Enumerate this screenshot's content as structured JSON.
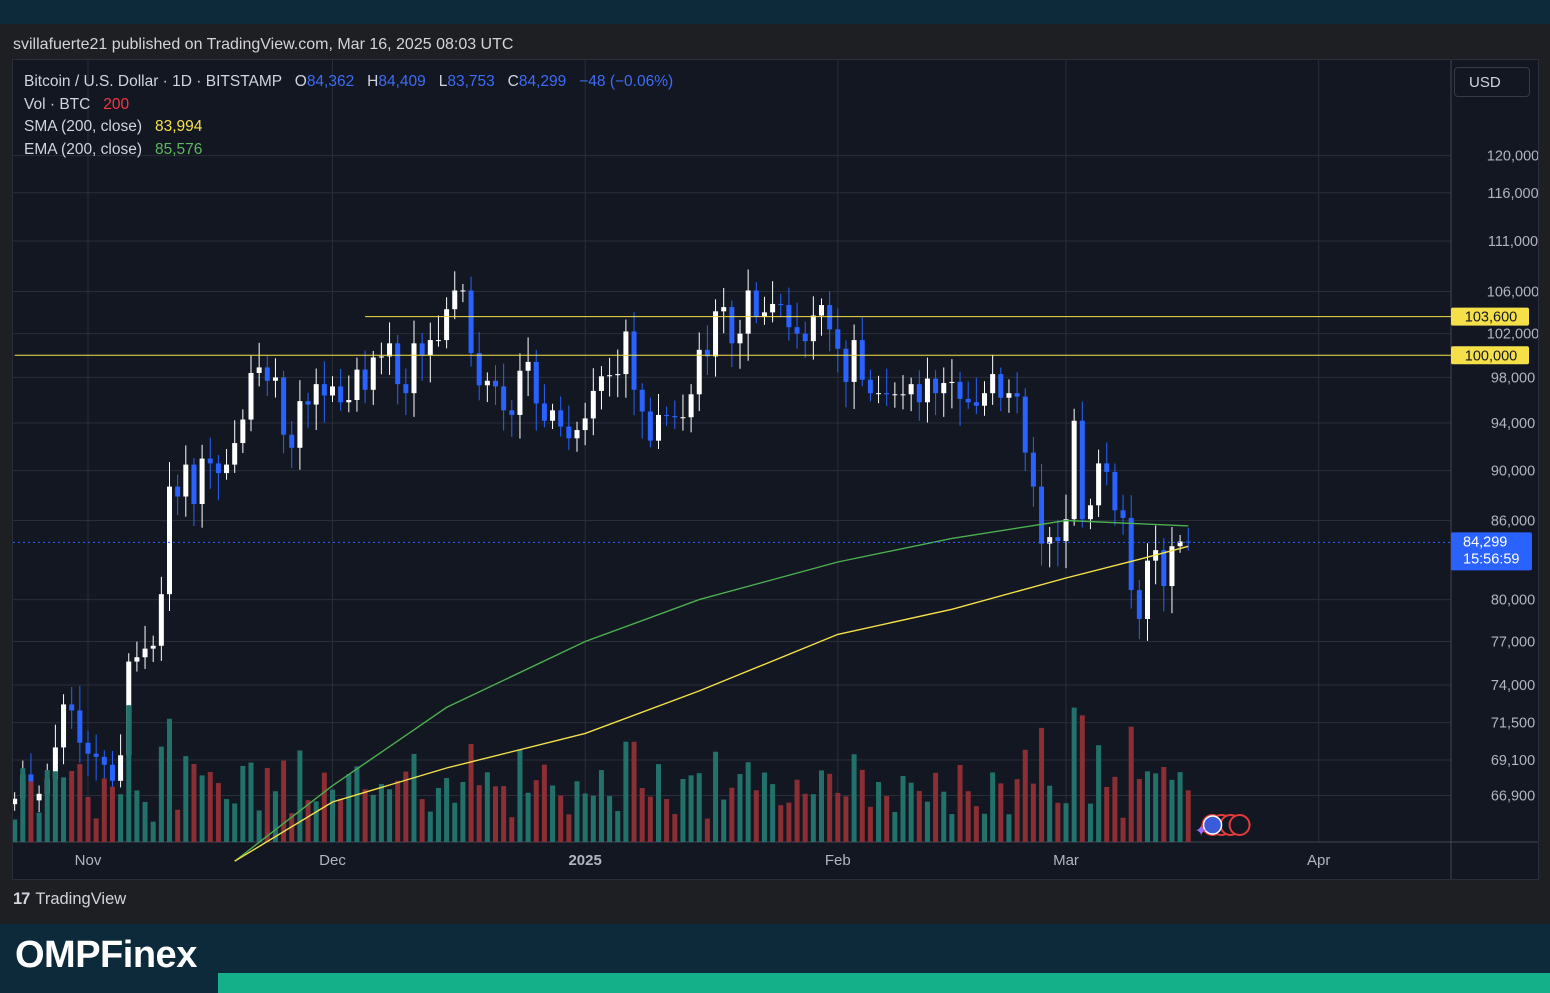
{
  "publisher_line": "svillafuerte21 published on TradingView.com, Mar 16, 2025 08:03 UTC",
  "legend": {
    "symbol": "Bitcoin / U.S. Dollar · 1D · BITSTAMP",
    "o_label": "O",
    "o_value": "84,362",
    "h_label": "H",
    "h_value": "84,409",
    "l_label": "L",
    "l_value": "83,753",
    "c_label": "C",
    "c_value": "84,299",
    "change": "−48 (−0.06%)",
    "vol_label": "Vol · BTC",
    "vol_value": "200",
    "sma_label": "SMA (200, close)",
    "sma_value": "83,994",
    "ema_label": "EMA (200, close)",
    "ema_value": "85,576"
  },
  "currency_button": "USD",
  "price_tag": {
    "value": "84,299",
    "countdown": "15:56:59",
    "color": "#2962ff"
  },
  "footer": {
    "tv_logo": "17",
    "tv_label": "TradingView",
    "brand_pre": "OMPF",
    "brand_post": "nex",
    "brand_i": "i"
  },
  "colors": {
    "up": "#ffffff",
    "down": "#2962ff",
    "sma": "#f5e04a",
    "ema": "#4caf50",
    "level": "#f5e04a",
    "vol_up": "#22726b",
    "vol_down": "#8b2f35",
    "accent": "#13b089"
  },
  "chart_data": {
    "type": "candlestick",
    "y_axis_ticks": [
      120000,
      116000,
      111000,
      106000,
      102000,
      98000,
      94000,
      90000,
      86000,
      80000,
      77000,
      74000,
      71500,
      69100,
      66900
    ],
    "y_axis_tick_labels": [
      "120,000",
      "116,000",
      "111,000",
      "106,000",
      "102,000",
      "98,000",
      "94,000",
      "90,000",
      "86,000",
      "80,000",
      "77,000",
      "74,000",
      "71,500",
      "69,100",
      "66,900"
    ],
    "scale": "log",
    "ylim": [
      65000,
      128000
    ],
    "x_axis_labels": [
      {
        "label": "Nov",
        "date": "2024-11-01",
        "bold": false
      },
      {
        "label": "Dec",
        "date": "2024-12-01",
        "bold": false
      },
      {
        "label": "2025",
        "date": "2025-01-01",
        "bold": true
      },
      {
        "label": "Feb",
        "date": "2025-02-01",
        "bold": false
      },
      {
        "label": "Mar",
        "date": "2025-03-01",
        "bold": false
      },
      {
        "label": "Apr",
        "date": "2025-04-01",
        "bold": false
      }
    ],
    "horizontal_levels": [
      {
        "value": 103600,
        "label": "103,600",
        "start_date": "2024-12-05"
      },
      {
        "value": 100000,
        "label": "100,000",
        "start_date": "2024-10-23"
      }
    ],
    "close_line": 84299,
    "series": [
      {
        "date": "2024-10-23",
        "close": 66700
      },
      {
        "date": "2024-10-24",
        "close": 68200
      },
      {
        "date": "2024-10-25",
        "close": 66600
      },
      {
        "date": "2024-10-26",
        "close": 67000
      },
      {
        "date": "2024-10-27",
        "close": 67900
      },
      {
        "date": "2024-10-28",
        "close": 69900
      },
      {
        "date": "2024-10-29",
        "close": 72700
      },
      {
        "date": "2024-10-30",
        "close": 72300
      },
      {
        "date": "2024-10-31",
        "close": 70200
      },
      {
        "date": "2024-11-01",
        "close": 69500
      },
      {
        "date": "2024-11-02",
        "close": 69300
      },
      {
        "date": "2024-11-03",
        "close": 68800
      },
      {
        "date": "2024-11-04",
        "close": 67800
      },
      {
        "date": "2024-11-05",
        "close": 69400
      },
      {
        "date": "2024-11-06",
        "close": 75600
      },
      {
        "date": "2024-11-07",
        "close": 75900
      },
      {
        "date": "2024-11-08",
        "close": 76500
      },
      {
        "date": "2024-11-09",
        "close": 76700
      },
      {
        "date": "2024-11-10",
        "close": 80400
      },
      {
        "date": "2024-11-11",
        "close": 88700
      },
      {
        "date": "2024-11-12",
        "close": 87900
      },
      {
        "date": "2024-11-13",
        "close": 90500
      },
      {
        "date": "2024-11-14",
        "close": 87300
      },
      {
        "date": "2024-11-15",
        "close": 91000
      },
      {
        "date": "2024-11-16",
        "close": 90600
      },
      {
        "date": "2024-11-17",
        "close": 89800
      },
      {
        "date": "2024-11-18",
        "close": 90500
      },
      {
        "date": "2024-11-19",
        "close": 92300
      },
      {
        "date": "2024-11-20",
        "close": 94300
      },
      {
        "date": "2024-11-21",
        "close": 98400
      },
      {
        "date": "2024-11-22",
        "close": 98900
      },
      {
        "date": "2024-11-23",
        "close": 97700
      },
      {
        "date": "2024-11-24",
        "close": 98000
      },
      {
        "date": "2024-11-25",
        "close": 93000
      },
      {
        "date": "2024-11-26",
        "close": 91900
      },
      {
        "date": "2024-11-27",
        "close": 95900
      },
      {
        "date": "2024-11-28",
        "close": 95600
      },
      {
        "date": "2024-11-29",
        "close": 97400
      },
      {
        "date": "2024-11-30",
        "close": 96400
      },
      {
        "date": "2024-12-01",
        "close": 97200
      },
      {
        "date": "2024-12-02",
        "close": 95800
      },
      {
        "date": "2024-12-03",
        "close": 96000
      },
      {
        "date": "2024-12-04",
        "close": 98700
      },
      {
        "date": "2024-12-05",
        "close": 96900
      },
      {
        "date": "2024-12-06",
        "close": 99800
      },
      {
        "date": "2024-12-07",
        "close": 99900
      },
      {
        "date": "2024-12-08",
        "close": 101100
      },
      {
        "date": "2024-12-09",
        "close": 97400
      },
      {
        "date": "2024-12-10",
        "close": 96600
      },
      {
        "date": "2024-12-11",
        "close": 101100
      },
      {
        "date": "2024-12-12",
        "close": 100000
      },
      {
        "date": "2024-12-13",
        "close": 101400
      },
      {
        "date": "2024-12-14",
        "close": 101400
      },
      {
        "date": "2024-12-15",
        "close": 104300
      },
      {
        "date": "2024-12-16",
        "close": 106100
      },
      {
        "date": "2024-12-17",
        "close": 106100
      },
      {
        "date": "2024-12-18",
        "close": 100200
      },
      {
        "date": "2024-12-19",
        "close": 97300
      },
      {
        "date": "2024-12-20",
        "close": 97700
      },
      {
        "date": "2024-12-21",
        "close": 97200
      },
      {
        "date": "2024-12-22",
        "close": 95100
      },
      {
        "date": "2024-12-23",
        "close": 94700
      },
      {
        "date": "2024-12-24",
        "close": 98600
      },
      {
        "date": "2024-12-25",
        "close": 99400
      },
      {
        "date": "2024-12-26",
        "close": 95700
      },
      {
        "date": "2024-12-27",
        "close": 94200
      },
      {
        "date": "2024-12-28",
        "close": 95100
      },
      {
        "date": "2024-12-29",
        "close": 93700
      },
      {
        "date": "2024-12-30",
        "close": 92700
      },
      {
        "date": "2024-12-31",
        "close": 93400
      },
      {
        "date": "2025-01-01",
        "close": 94400
      },
      {
        "date": "2025-01-02",
        "close": 96800
      },
      {
        "date": "2025-01-03",
        "close": 98100
      },
      {
        "date": "2025-01-04",
        "close": 98200
      },
      {
        "date": "2025-01-05",
        "close": 98300
      },
      {
        "date": "2025-01-06",
        "close": 102200
      },
      {
        "date": "2025-01-07",
        "close": 96900
      },
      {
        "date": "2025-01-08",
        "close": 95000
      },
      {
        "date": "2025-01-09",
        "close": 92500
      },
      {
        "date": "2025-01-10",
        "close": 94700
      },
      {
        "date": "2025-01-11",
        "close": 94600
      },
      {
        "date": "2025-01-12",
        "close": 94500
      },
      {
        "date": "2025-01-13",
        "close": 94500
      },
      {
        "date": "2025-01-14",
        "close": 96500
      },
      {
        "date": "2025-01-15",
        "close": 100500
      },
      {
        "date": "2025-01-16",
        "close": 99900
      },
      {
        "date": "2025-01-17",
        "close": 104100
      },
      {
        "date": "2025-01-18",
        "close": 104500
      },
      {
        "date": "2025-01-19",
        "close": 101100
      },
      {
        "date": "2025-01-20",
        "close": 102000
      },
      {
        "date": "2025-01-21",
        "close": 106100
      },
      {
        "date": "2025-01-22",
        "close": 103600
      },
      {
        "date": "2025-01-23",
        "close": 104000
      },
      {
        "date": "2025-01-24",
        "close": 104800
      },
      {
        "date": "2025-01-25",
        "close": 104700
      },
      {
        "date": "2025-01-26",
        "close": 102600
      },
      {
        "date": "2025-01-27",
        "close": 102000
      },
      {
        "date": "2025-01-28",
        "close": 101300
      },
      {
        "date": "2025-01-29",
        "close": 103700
      },
      {
        "date": "2025-01-30",
        "close": 104700
      },
      {
        "date": "2025-01-31",
        "close": 102400
      },
      {
        "date": "2025-02-01",
        "close": 100600
      },
      {
        "date": "2025-02-02",
        "close": 97600
      },
      {
        "date": "2025-02-03",
        "close": 101400
      },
      {
        "date": "2025-02-04",
        "close": 97800
      },
      {
        "date": "2025-02-05",
        "close": 96600
      },
      {
        "date": "2025-02-06",
        "close": 96600
      },
      {
        "date": "2025-02-07",
        "close": 96500
      },
      {
        "date": "2025-02-08",
        "close": 96500
      },
      {
        "date": "2025-02-09",
        "close": 96500
      },
      {
        "date": "2025-02-10",
        "close": 97400
      },
      {
        "date": "2025-02-11",
        "close": 95800
      },
      {
        "date": "2025-02-12",
        "close": 97900
      },
      {
        "date": "2025-02-13",
        "close": 96600
      },
      {
        "date": "2025-02-14",
        "close": 97500
      },
      {
        "date": "2025-02-15",
        "close": 97600
      },
      {
        "date": "2025-02-16",
        "close": 96100
      },
      {
        "date": "2025-02-17",
        "close": 95800
      },
      {
        "date": "2025-02-18",
        "close": 95500
      },
      {
        "date": "2025-02-19",
        "close": 96600
      },
      {
        "date": "2025-02-20",
        "close": 98300
      },
      {
        "date": "2025-02-21",
        "close": 96200
      },
      {
        "date": "2025-02-22",
        "close": 96600
      },
      {
        "date": "2025-02-23",
        "close": 96300
      },
      {
        "date": "2025-02-24",
        "close": 91500
      },
      {
        "date": "2025-02-25",
        "close": 88700
      },
      {
        "date": "2025-02-26",
        "close": 84200
      },
      {
        "date": "2025-02-27",
        "close": 84700
      },
      {
        "date": "2025-02-28",
        "close": 84400
      },
      {
        "date": "2025-03-01",
        "close": 86100
      },
      {
        "date": "2025-03-02",
        "close": 94200
      },
      {
        "date": "2025-03-03",
        "close": 86100
      },
      {
        "date": "2025-03-04",
        "close": 87200
      },
      {
        "date": "2025-03-05",
        "close": 90600
      },
      {
        "date": "2025-03-06",
        "close": 89900
      },
      {
        "date": "2025-03-07",
        "close": 86800
      },
      {
        "date": "2025-03-08",
        "close": 86200
      },
      {
        "date": "2025-03-09",
        "close": 80700
      },
      {
        "date": "2025-03-10",
        "close": 78600
      },
      {
        "date": "2025-03-11",
        "close": 82900
      },
      {
        "date": "2025-03-12",
        "close": 83700
      },
      {
        "date": "2025-03-13",
        "close": 81000
      },
      {
        "date": "2025-03-14",
        "close": 84000
      },
      {
        "date": "2025-03-15",
        "close": 84362
      },
      {
        "date": "2025-03-16",
        "close": 84299
      }
    ]
  }
}
